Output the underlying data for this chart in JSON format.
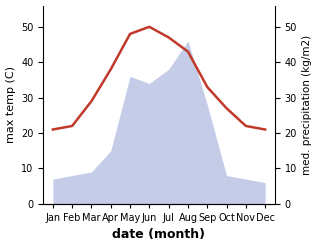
{
  "months": [
    "Jan",
    "Feb",
    "Mar",
    "Apr",
    "May",
    "Jun",
    "Jul",
    "Aug",
    "Sep",
    "Oct",
    "Nov",
    "Dec"
  ],
  "x": [
    1,
    2,
    3,
    4,
    5,
    6,
    7,
    8,
    9,
    10,
    11,
    12
  ],
  "temperature": [
    7,
    8,
    9,
    15,
    36,
    34,
    38,
    46,
    28,
    8,
    7,
    6
  ],
  "precipitation": [
    21,
    22,
    29,
    38,
    48,
    50,
    47,
    43,
    33,
    27,
    22,
    21
  ],
  "temp_fill_color": "#c5cce8",
  "precip_color": "#c0392b",
  "temp_ylim": [
    0,
    56
  ],
  "precip_ylim": [
    0,
    56
  ],
  "temp_yticks": [
    0,
    10,
    20,
    30,
    40,
    50
  ],
  "precip_yticks": [
    0,
    10,
    20,
    30,
    40,
    50
  ],
  "xlabel": "date (month)",
  "ylabel_left": "max temp (C)",
  "ylabel_right": "med. precipitation (kg/m2)",
  "background_color": "#ffffff",
  "label_fontsize": 8,
  "tick_fontsize": 7,
  "xlabel_fontsize": 9
}
